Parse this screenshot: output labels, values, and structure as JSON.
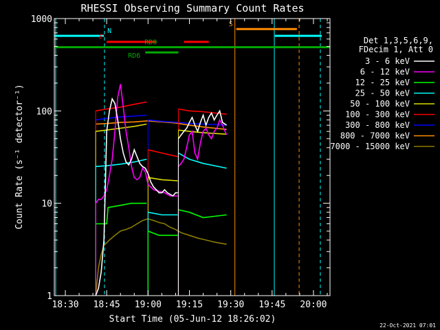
{
  "chart_data": {
    "type": "line",
    "title": "RHESSI Observing Summary Count Rates",
    "xlabel": "Start Time (05-Jun-12 18:26:02)",
    "ylabel": "Count Rate (s⁻¹ detector⁻¹)",
    "ylog": true,
    "ylim": [
      1,
      1000
    ],
    "xlim_minutes_of_day": [
      1106,
      1206
    ],
    "x_ticks": [
      "18:30",
      "18:45",
      "19:00",
      "19:15",
      "19:30",
      "19:45",
      "20:00"
    ],
    "x_tick_minutes": [
      1110,
      1125,
      1140,
      1155,
      1170,
      1185,
      1200
    ],
    "y_ticks": [
      "1",
      "10",
      "100",
      "1000"
    ],
    "y_tick_values": [
      1,
      10,
      100,
      1000
    ],
    "legend_header": [
      "Det 1,3,5,6,9,",
      "FDecim 1, Att 0"
    ],
    "timestamp": "22-Oct-2021 07:01",
    "data_gaps_minutes": [
      [
        1111,
        1121
      ],
      [
        1176,
        1186
      ],
      [
        1201,
        1206
      ]
    ],
    "series": [
      {
        "name": "3 - 6 keV",
        "color": "#ffffff",
        "segments": [
          {
            "x": [
              1121,
              1122,
              1123,
              1124,
              1124.5,
              1125,
              1126,
              1127,
              1128,
              1129,
              1130,
              1131,
              1132,
              1133,
              1134,
              1135,
              1136,
              1137,
              1138,
              1139,
              1140,
              1141,
              1142,
              1143,
              1144,
              1145,
              1146,
              1147,
              1148,
              1149,
              1150,
              1150.8
            ],
            "y": [
              1,
              1.2,
              1.8,
              4,
              15,
              60,
              100,
              135,
              120,
              80,
              50,
              35,
              28,
              26,
              30,
              38,
              32,
              27,
              25,
              24,
              21,
              17,
              15,
              14,
              13,
              13,
              14,
              13,
              12.5,
              12,
              13,
              13
            ]
          },
          {
            "x": [
              1151,
              1152,
              1153,
              1154,
              1155,
              1156,
              1157,
              1158,
              1159,
              1160,
              1161,
              1162,
              1163,
              1164,
              1165,
              1166,
              1167,
              1168.5
            ],
            "y": [
              50,
              55,
              60,
              65,
              75,
              85,
              70,
              60,
              75,
              90,
              70,
              85,
              95,
              80,
              90,
              100,
              75,
              70
            ]
          }
        ]
      },
      {
        "name": "6 - 12 keV",
        "color": "#ff00ff",
        "segments": [
          {
            "x": [
              1121,
              1122,
              1123,
              1124,
              1125,
              1126,
              1127,
              1128,
              1129,
              1130,
              1131,
              1132,
              1133,
              1134,
              1135,
              1136,
              1137,
              1138,
              1139,
              1140,
              1142,
              1144,
              1146,
              1148,
              1150,
              1150.8
            ],
            "y": [
              10,
              11,
              11,
              12,
              14,
              20,
              30,
              60,
              140,
              195,
              110,
              60,
              40,
              25,
              19,
              18,
              19,
              24,
              22,
              16,
              14,
              13.5,
              13,
              12,
              12,
              12
            ]
          },
          {
            "x": [
              1151,
              1152,
              1153,
              1154,
              1155,
              1156,
              1157,
              1158,
              1159,
              1160,
              1161,
              1162,
              1163,
              1164,
              1165,
              1166,
              1167,
              1168.5
            ],
            "y": [
              25,
              27,
              30,
              40,
              55,
              60,
              35,
              30,
              45,
              60,
              65,
              55,
              50,
              60,
              65,
              80,
              70,
              55
            ]
          }
        ]
      },
      {
        "name": "12 - 25 keV",
        "color": "#00ff00",
        "segments": [
          {
            "x": [
              1121,
              1125,
              1125.5,
              1130,
              1134,
              1139.5
            ],
            "y": [
              6,
              6,
              9,
              9.5,
              10,
              10
            ]
          },
          {
            "x": [
              1140,
              1144,
              1150.8
            ],
            "y": [
              5,
              4.5,
              4.5
            ]
          },
          {
            "x": [
              1151,
              1155,
              1160,
              1168.5
            ],
            "y": [
              8.5,
              8,
              7,
              7.5
            ]
          }
        ]
      },
      {
        "name": "25 - 50 keV",
        "color": "#00ffff",
        "segments": [
          {
            "x": [
              1121,
              1125,
              1130,
              1135,
              1139.5
            ],
            "y": [
              25,
              25.5,
              26.5,
              28,
              30
            ]
          },
          {
            "x": [
              1140,
              1145,
              1150.8
            ],
            "y": [
              8,
              7.5,
              7.5
            ]
          },
          {
            "x": [
              1151,
              1155,
              1160,
              1168.5
            ],
            "y": [
              35,
              30,
              27,
              24
            ]
          }
        ]
      },
      {
        "name": "50 - 100 keV",
        "color": "#dddd00",
        "segments": [
          {
            "x": [
              1121,
              1125,
              1130,
              1135,
              1139.5
            ],
            "y": [
              60,
              62,
              65,
              68,
              72
            ]
          },
          {
            "x": [
              1140,
              1145,
              1150.8
            ],
            "y": [
              19,
              18,
              17.5
            ]
          },
          {
            "x": [
              1151,
              1155,
              1160,
              1168.5
            ],
            "y": [
              62,
              60,
              58,
              56
            ]
          }
        ]
      },
      {
        "name": "100 - 300 keV",
        "color": "#ff0000",
        "segments": [
          {
            "x": [
              1121,
              1125,
              1130,
              1135,
              1139.5
            ],
            "y": [
              100,
              105,
              110,
              118,
              125
            ]
          },
          {
            "x": [
              1140,
              1145,
              1150.8
            ],
            "y": [
              38,
              35,
              32
            ]
          },
          {
            "x": [
              1151,
              1155,
              1160,
              1168.5
            ],
            "y": [
              105,
              100,
              98,
              92
            ]
          }
        ]
      },
      {
        "name": "300 - 800 keV",
        "color": "#0000ff",
        "segments": [
          {
            "x": [
              1121,
              1125,
              1130,
              1135,
              1139.5
            ],
            "y": [
              80,
              83,
              86,
              88,
              90
            ]
          },
          {
            "x": [
              1140,
              1145,
              1150.8
            ],
            "y": [
              80,
              77,
              75
            ]
          },
          {
            "x": [
              1151,
              1155,
              1160,
              1168.5
            ],
            "y": [
              75,
              73,
              72,
              70
            ]
          }
        ]
      },
      {
        "name": "800 - 7000 keV",
        "color": "#ff8c00",
        "segments": [
          {
            "x": [
              1121,
              1125,
              1130,
              1135,
              1140,
              1145,
              1150,
              1155,
              1160,
              1168.5
            ],
            "y": [
              72,
              73,
              75,
              76,
              78,
              76,
              74,
              70,
              67,
              63
            ]
          }
        ]
      },
      {
        "name": "7000 - 15000 keV",
        "color": "#8b7d00",
        "segments": [
          {
            "x": [
              1121,
              1122,
              1123,
              1124,
              1126,
              1128,
              1130,
              1132,
              1134,
              1136,
              1138,
              1140,
              1142,
              1144,
              1146,
              1148,
              1150,
              1152,
              1155,
              1158,
              1161,
              1164,
              1168.5
            ],
            "y": [
              1,
              2,
              2.8,
              3.5,
              4,
              4.5,
              5,
              5.2,
              5.5,
              6,
              6.5,
              6.8,
              6.5,
              6.2,
              6,
              5.5,
              5.2,
              4.8,
              4.5,
              4.2,
              4,
              3.8,
              3.6
            ]
          }
        ]
      }
    ],
    "flags": [
      {
        "label": "N",
        "color": "#00ffff",
        "y": 650,
        "ranges": [
          [
            1106,
            1124
          ]
        ],
        "label_at": 1126,
        "label_dy": -4
      },
      {
        "label": "F",
        "color": "#ff0000",
        "y": 560,
        "ranges": [
          [
            1125,
            1143
          ],
          [
            1153,
            1162
          ]
        ],
        "label_at": 1123,
        "label_dy": -4
      },
      {
        "label": "RD0",
        "color": "#00aa00",
        "y": 490,
        "ranges": [
          [
            1106,
            1206
          ]
        ],
        "label_at": 1141,
        "label_dy": -4
      },
      {
        "label": "RD6",
        "color": "#00aa00",
        "y": 430,
        "ranges": [
          [
            1139,
            1151
          ]
        ],
        "label_at": 1135,
        "label_dy": 8
      },
      {
        "label": "S",
        "color": "#ff8c00",
        "y": 770,
        "ranges": [
          [
            1172,
            1194
          ]
        ],
        "label_at": 1170,
        "label_dy": -4
      },
      {
        "label": "",
        "color": "#00ffff",
        "y": 650,
        "ranges": [
          [
            1186,
            1203
          ]
        ]
      }
    ],
    "vertical_markers": [
      {
        "x": 1106.5,
        "color": "#00ffff",
        "dash": false
      },
      {
        "x": 1124.2,
        "color": "#00ffff",
        "dash": true
      },
      {
        "x": 1171.5,
        "color": "#ff8c00",
        "dash": false
      },
      {
        "x": 1185.8,
        "color": "#00ffff",
        "dash": false
      },
      {
        "x": 1194.8,
        "color": "#ff8c00",
        "dash": true
      },
      {
        "x": 1202.5,
        "color": "#00ffff",
        "dash": true
      }
    ]
  }
}
